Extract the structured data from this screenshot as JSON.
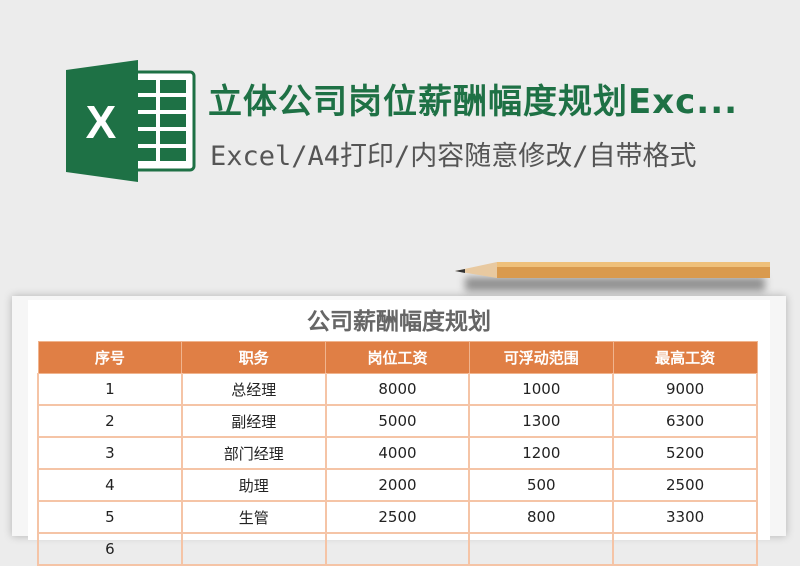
{
  "header": {
    "title": "立体公司岗位薪酬幅度规划Exc...",
    "subtitle": "Excel/A4打印/内容随意修改/自带格式",
    "icon": "excel-logo-icon",
    "accent": "#1e7145"
  },
  "sheet": {
    "title": "公司薪酬幅度规划",
    "header_color": "#e07f45",
    "columns": [
      "序号",
      "职务",
      "岗位工资",
      "可浮动范围",
      "最高工资"
    ],
    "rows": [
      [
        "1",
        "总经理",
        "8000",
        "1000",
        "9000"
      ],
      [
        "2",
        "副经理",
        "5000",
        "1300",
        "6300"
      ],
      [
        "3",
        "部门经理",
        "4000",
        "1200",
        "5200"
      ],
      [
        "4",
        "助理",
        "2000",
        "500",
        "2500"
      ],
      [
        "5",
        "生管",
        "2500",
        "800",
        "3300"
      ],
      [
        "6",
        "",
        "",
        "",
        ""
      ]
    ]
  }
}
